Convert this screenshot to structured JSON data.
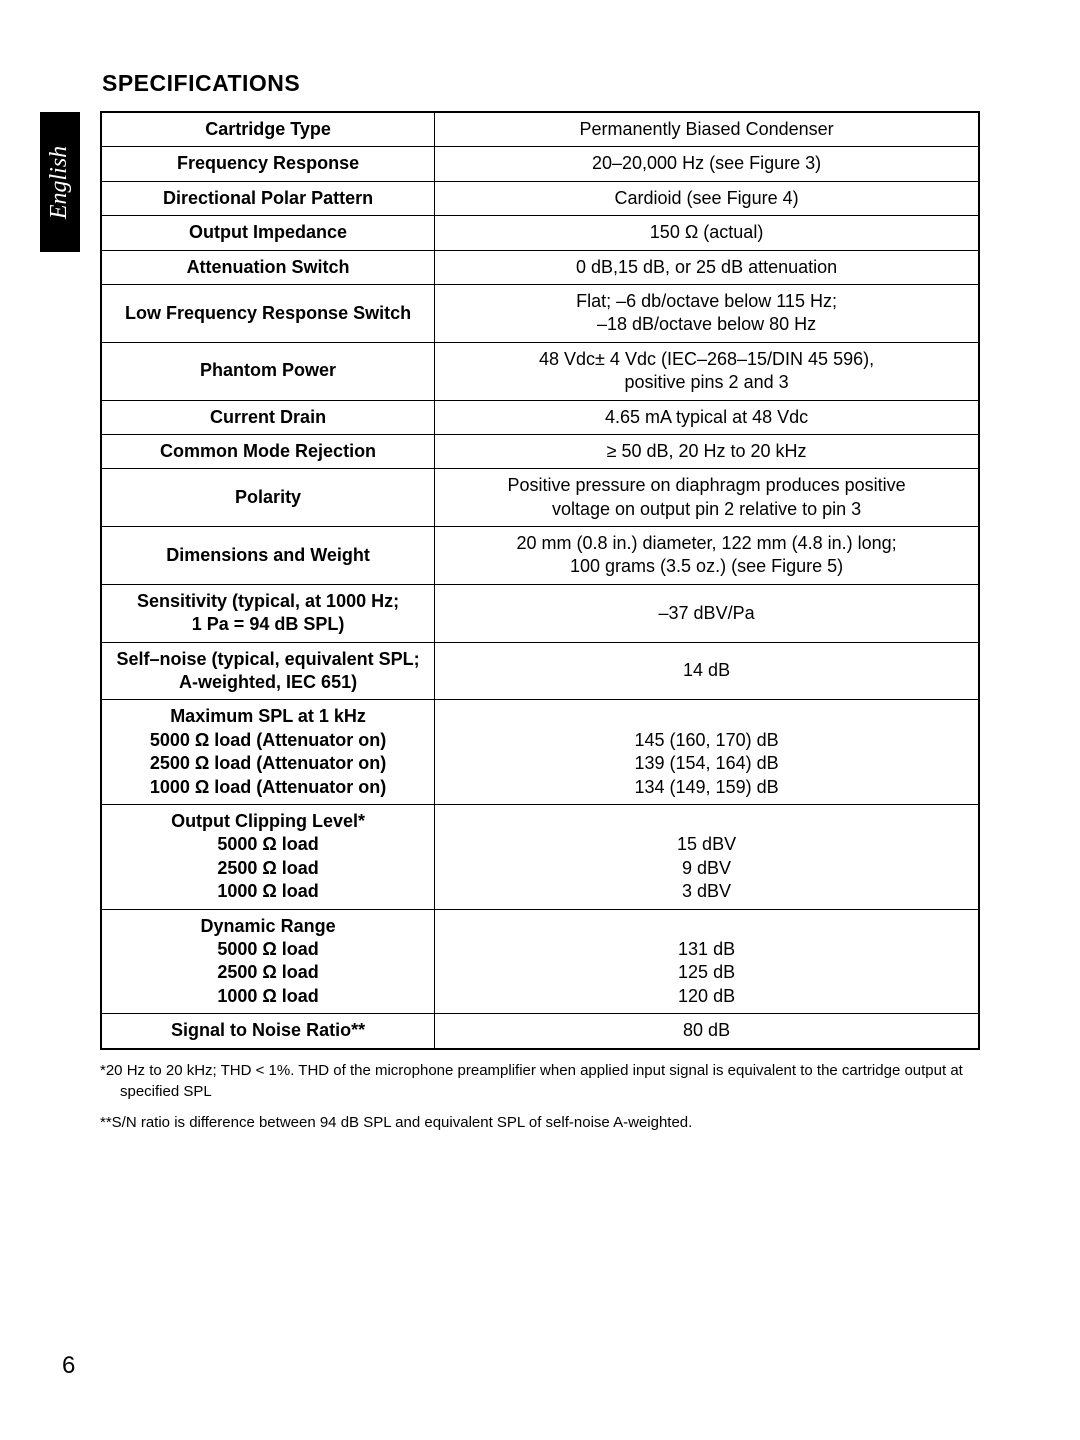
{
  "language_tab": "English",
  "title": "SPECIFICATIONS",
  "page_number": "6",
  "table": {
    "rows": [
      {
        "label": "Cartridge Type",
        "value": "Permanently Biased Condenser"
      },
      {
        "label": "Frequency Response",
        "value": "20–20,000 Hz (see Figure 3)"
      },
      {
        "label": "Directional Polar Pattern",
        "value": "Cardioid (see Figure 4)"
      },
      {
        "label": "Output Impedance",
        "value": "150 Ω (actual)"
      },
      {
        "label": "Attenuation Switch",
        "value": "0 dB,15 dB, or 25 dB attenuation"
      },
      {
        "label": "Low Frequency Response Switch",
        "value": "Flat; –6 db/octave below 115 Hz;\n–18 dB/octave below 80 Hz"
      },
      {
        "label": "Phantom Power",
        "value": "48 Vdc± 4 Vdc (IEC–268–15/DIN 45 596),\npositive pins 2 and 3"
      },
      {
        "label": "Current Drain",
        "value": "4.65 mA typical at 48 Vdc"
      },
      {
        "label": "Common Mode Rejection",
        "value": "≥ 50 dB, 20 Hz to 20 kHz"
      },
      {
        "label": "Polarity",
        "value": "Positive pressure on diaphragm produces positive\nvoltage on output pin 2 relative to pin 3"
      },
      {
        "label": "Dimensions and Weight",
        "value": "20 mm (0.8 in.) diameter, 122 mm (4.8 in.) long;\n100 grams (3.5 oz.) (see Figure 5)"
      },
      {
        "label": "Sensitivity (typical, at 1000 Hz;\n1 Pa = 94 dB SPL)",
        "value": "–37 dBV/Pa"
      },
      {
        "label": "Self–noise (typical, equivalent SPL;\nA-weighted, IEC 651)",
        "value": "14 dB"
      },
      {
        "label": "Maximum SPL at 1 kHz\n5000 Ω load (Attenuator on)\n2500 Ω load (Attenuator on)\n1000 Ω load (Attenuator on)",
        "value": "\n145 (160, 170) dB\n139 (154, 164) dB\n134 (149, 159) dB"
      },
      {
        "label": "Output Clipping Level*\n5000 Ω load\n2500 Ω load\n1000 Ω load",
        "value": "\n15 dBV\n9 dBV\n3 dBV"
      },
      {
        "label": "Dynamic Range\n5000 Ω load\n2500 Ω load\n1000 Ω load",
        "value": "\n131 dB\n125 dB\n120 dB"
      },
      {
        "label": "Signal to Noise Ratio**",
        "value": "80 dB"
      }
    ]
  },
  "footnotes": [
    "*20 Hz to 20 kHz; THD < 1%.  THD of the microphone preamplifier when applied input signal is equivalent to the cartridge output at specified SPL",
    "**S/N ratio is difference between 94 dB SPL and equivalent SPL of self-noise A-weighted."
  ],
  "style": {
    "page_bg": "#ffffff",
    "text_color": "#000000",
    "tab_bg": "#000000",
    "tab_text": "#ffffff",
    "border_color": "#000000",
    "title_fontsize": 23,
    "table_fontsize": 18,
    "footnote_fontsize": 15,
    "pagenum_fontsize": 24,
    "label_col_width_pct": 38
  }
}
